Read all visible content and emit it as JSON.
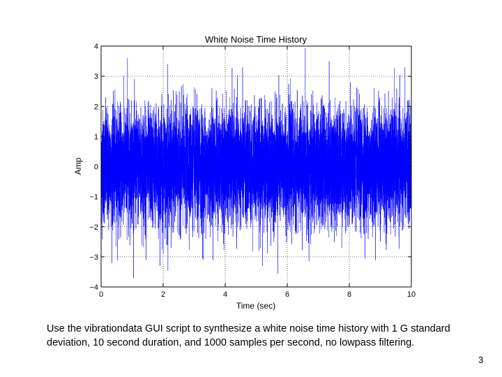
{
  "slide": {
    "caption": "Use the vibrationdata GUI script to synthesize a white noise time history with 1 G standard deviation, 10 second duration, and 1000 samples per second, no lowpass filtering.",
    "page_number": "3"
  },
  "colors": {
    "series": "#0000ff",
    "grid": "#000000",
    "axes": "#000000"
  },
  "chart_data": {
    "type": "line",
    "title": "White Noise Time History",
    "xlabel": "Time (sec)",
    "ylabel": "Amp",
    "xlim": [
      0,
      10
    ],
    "ylim": [
      -4,
      4
    ],
    "x_ticks": [
      "0",
      "2",
      "4",
      "6",
      "8",
      "10"
    ],
    "y_ticks": [
      "4",
      "3",
      "2",
      "1",
      "0",
      "−1",
      "−2",
      "−3",
      "−4"
    ],
    "grid": true,
    "series": [
      {
        "values_description_free": true,
        "std_dev": 1,
        "duration_sec": 10,
        "sample_rate_sps": 1000,
        "envelope_peaks": [
          {
            "x": 0.85,
            "y": 3.6
          },
          {
            "x": 7.35,
            "y": 3.5
          },
          {
            "x": 2.15,
            "y": 3.4
          },
          {
            "x": 5.2,
            "y": -3.3
          },
          {
            "x": 1.9,
            "y": -3.3
          },
          {
            "x": 5.7,
            "y": -3.55
          },
          {
            "x": 3.3,
            "y": -3.1
          },
          {
            "x": 1.45,
            "y": -3.1
          },
          {
            "x": 6.7,
            "y": -3.15
          }
        ]
      }
    ]
  }
}
